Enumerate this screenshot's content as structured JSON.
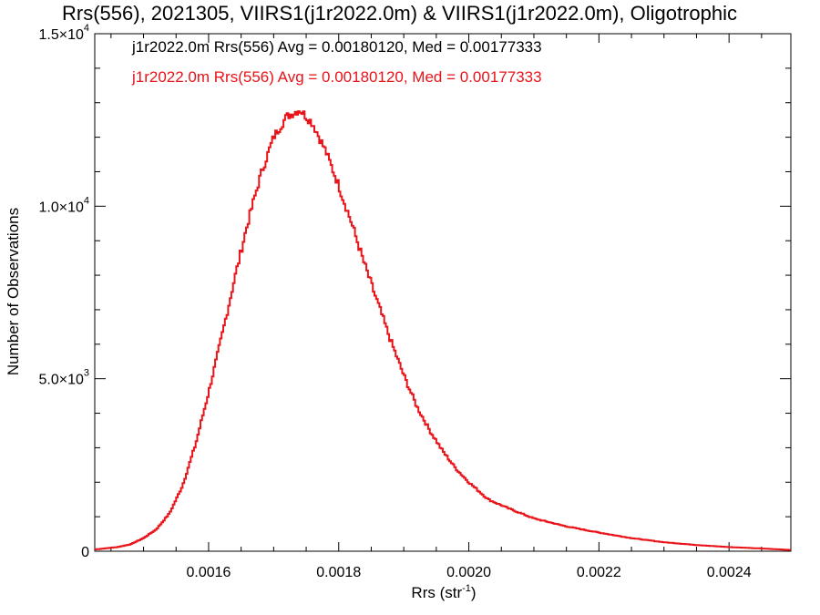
{
  "chart_data": {
    "type": "histogram",
    "title": "Rrs(556), 2021305, VIIRS1(j1r2022.0m) & VIIRS1(j1r2022.0m), Oligotrophic",
    "xlabel": {
      "text": "Rrs (str",
      "sup": "-1",
      "suffix": ")"
    },
    "ylabel": "Number of Observations",
    "xlim": [
      0.001425,
      0.002495
    ],
    "ylim": [
      0,
      15000
    ],
    "x_ticks": [
      {
        "value": 0.0016,
        "label": "0.0016"
      },
      {
        "value": 0.0018,
        "label": "0.0018"
      },
      {
        "value": 0.002,
        "label": "0.0020"
      },
      {
        "value": 0.0022,
        "label": "0.0022"
      },
      {
        "value": 0.0024,
        "label": "0.0024"
      }
    ],
    "y_ticks": [
      {
        "value": 0,
        "mant": "0",
        "exp": ""
      },
      {
        "value": 5000,
        "mant": "5.0×10",
        "exp": "3"
      },
      {
        "value": 10000,
        "mant": "1.0×10",
        "exp": "4"
      },
      {
        "value": 15000,
        "mant": "1.5×10",
        "exp": "4"
      }
    ],
    "annotations": [
      {
        "text": "j1r2022.0m Rrs(556) Avg = 0.00180120, Med = 0.00177333",
        "color": "#000000"
      },
      {
        "text": "j1r2022.0m Rrs(556) Avg = 0.00180120, Med = 0.00177333",
        "color": "#e8141a"
      }
    ],
    "series": [
      {
        "color": "#e8141a",
        "step": true,
        "points": [
          [
            0.001425,
            50
          ],
          [
            0.00146,
            120
          ],
          [
            0.00148,
            200
          ],
          [
            0.0015,
            380
          ],
          [
            0.00152,
            640
          ],
          [
            0.00154,
            1100
          ],
          [
            0.00156,
            1900
          ],
          [
            0.00158,
            3100
          ],
          [
            0.0016,
            4600
          ],
          [
            0.00162,
            6200
          ],
          [
            0.00164,
            7900
          ],
          [
            0.00166,
            9500
          ],
          [
            0.00168,
            10900
          ],
          [
            0.0017,
            12000
          ],
          [
            0.00172,
            12600
          ],
          [
            0.00174,
            12800
          ],
          [
            0.00176,
            12400
          ],
          [
            0.00178,
            11600
          ],
          [
            0.0018,
            10600
          ],
          [
            0.00182,
            9500
          ],
          [
            0.00184,
            8300
          ],
          [
            0.00186,
            7200
          ],
          [
            0.00188,
            6100
          ],
          [
            0.0019,
            5100
          ],
          [
            0.00192,
            4200
          ],
          [
            0.00194,
            3500
          ],
          [
            0.00196,
            2900
          ],
          [
            0.00198,
            2400
          ],
          [
            0.002,
            2000
          ],
          [
            0.00203,
            1500
          ],
          [
            0.00206,
            1250
          ],
          [
            0.0021,
            950
          ],
          [
            0.00215,
            720
          ],
          [
            0.0022,
            540
          ],
          [
            0.00225,
            380
          ],
          [
            0.0023,
            260
          ],
          [
            0.00235,
            180
          ],
          [
            0.0024,
            120
          ],
          [
            0.00245,
            80
          ],
          [
            0.00249,
            40
          ]
        ]
      }
    ]
  }
}
